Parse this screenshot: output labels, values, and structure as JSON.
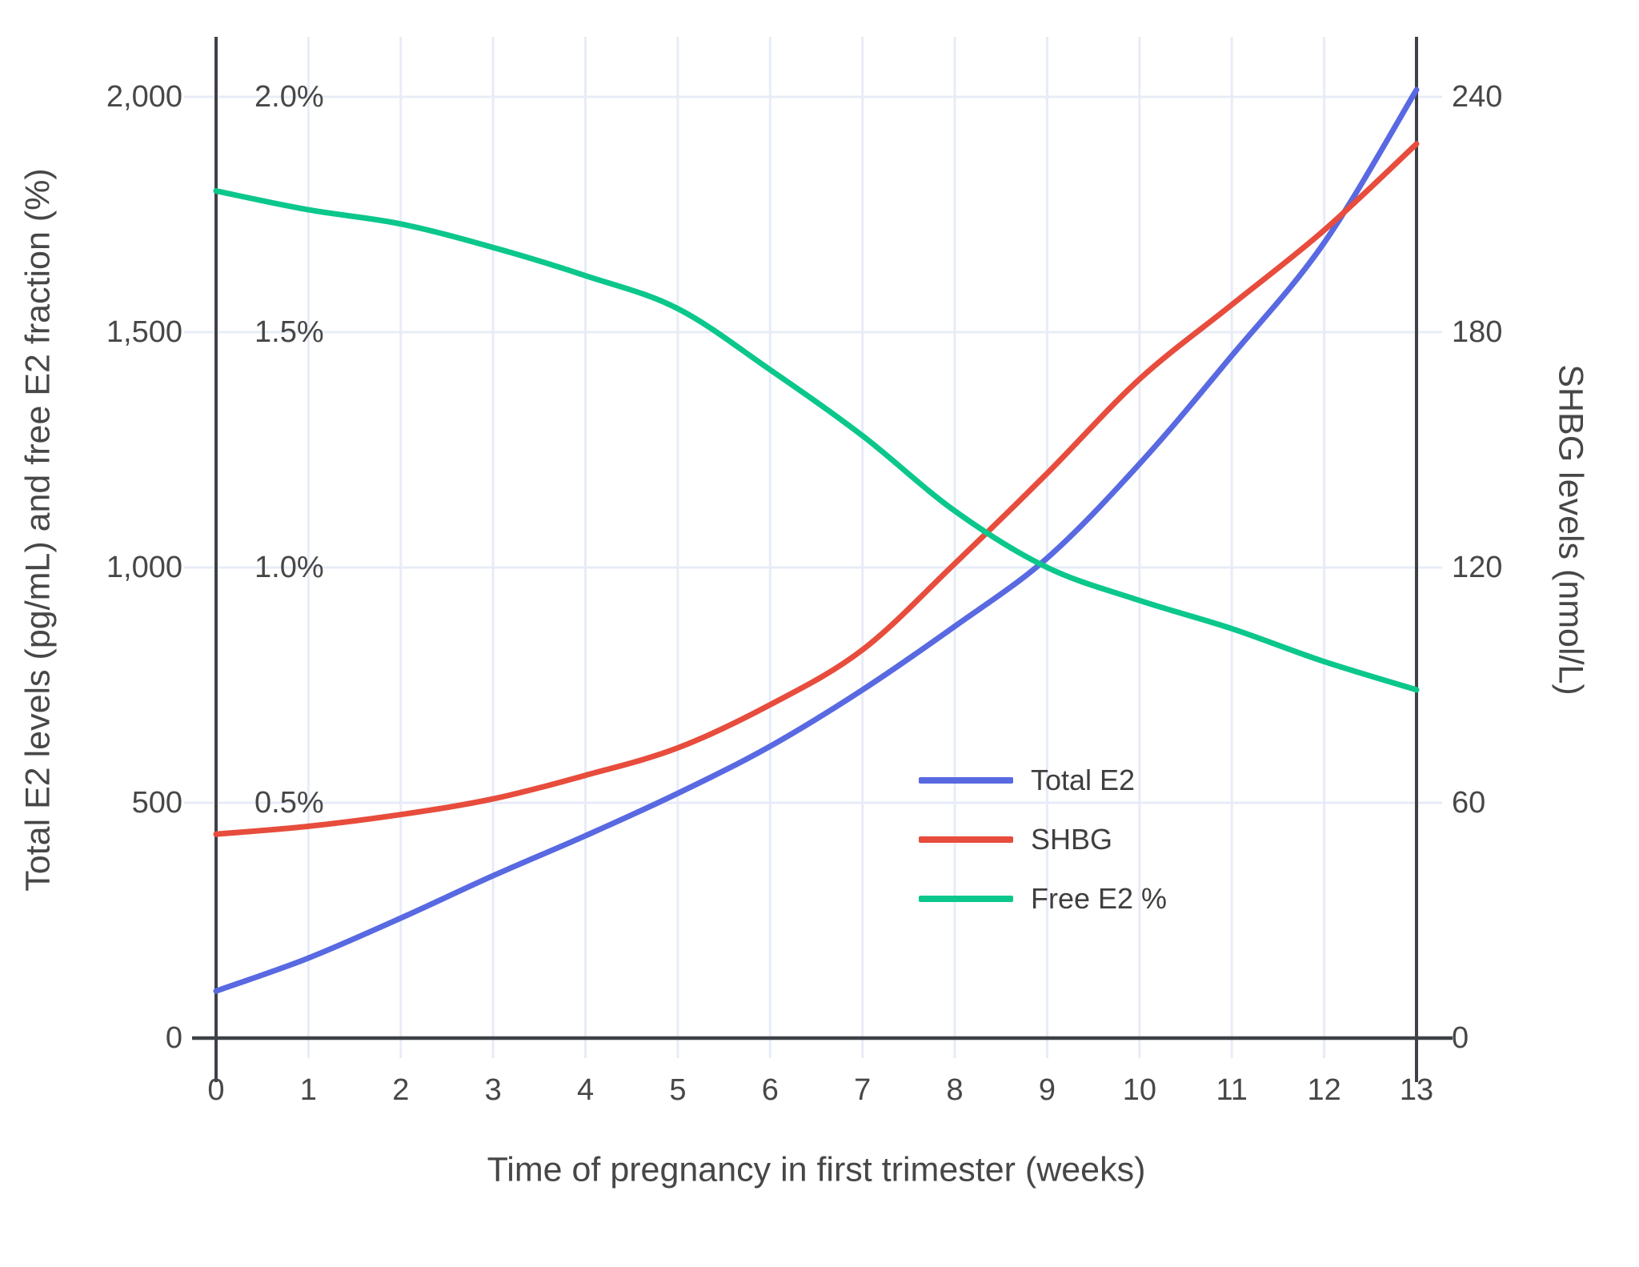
{
  "chart_data": {
    "type": "line",
    "title": "",
    "xlabel": "Time of pregnancy in first trimester (weeks)",
    "ylabel_left": "Total E2 levels (pg/mL) and free E2 fraction (%)",
    "ylabel_right": "SHBG levels (nmol/L)",
    "x": [
      0,
      1,
      2,
      3,
      4,
      5,
      6,
      7,
      8,
      9,
      10,
      11,
      12,
      13
    ],
    "x_tick_labels": [
      "0",
      "1",
      "2",
      "3",
      "4",
      "5",
      "6",
      "7",
      "8",
      "9",
      "10",
      "11",
      "12",
      "13"
    ],
    "x_range": [
      0,
      13
    ],
    "left_axis": {
      "tick_labels": [
        "0",
        "500",
        "1,000",
        "1,500",
        "2,000"
      ],
      "tick_values": [
        0,
        500,
        1000,
        1500,
        2000
      ],
      "range": [
        0,
        2000
      ]
    },
    "pct_axis": {
      "tick_labels": [
        "0.5%",
        "1.0%",
        "1.5%",
        "2.0%"
      ],
      "tick_values": [
        0.5,
        1.0,
        1.5,
        2.0
      ],
      "range": [
        0,
        2.0
      ]
    },
    "right_axis": {
      "tick_labels": [
        "0",
        "60",
        "120",
        "180",
        "240"
      ],
      "tick_values": [
        0,
        60,
        120,
        180,
        240
      ],
      "range": [
        0,
        240
      ]
    },
    "grid": true,
    "legend_position": "inside-right-middle",
    "series": [
      {
        "name": "Total E2",
        "axis": "left",
        "units": "pg/mL",
        "color": "#5869E1",
        "values": [
          100,
          170,
          255,
          345,
          430,
          520,
          620,
          740,
          875,
          1020,
          1220,
          1450,
          1690,
          2015
        ]
      },
      {
        "name": "SHBG",
        "axis": "right",
        "units": "nmol/L",
        "color": "#E74C3C",
        "values": [
          52,
          54,
          57,
          61,
          67,
          74,
          85,
          99,
          121,
          144,
          168,
          187,
          206,
          228
        ]
      },
      {
        "name": "Free E2 %",
        "axis": "pct",
        "units": "%",
        "color": "#0BC78C",
        "values": [
          1.8,
          1.76,
          1.73,
          1.68,
          1.62,
          1.55,
          1.42,
          1.28,
          1.12,
          1.0,
          0.93,
          0.87,
          0.8,
          0.74
        ]
      }
    ],
    "colors": {
      "grid": "#E7ECF7",
      "axis": "#3E4247",
      "text": "#474747"
    }
  }
}
